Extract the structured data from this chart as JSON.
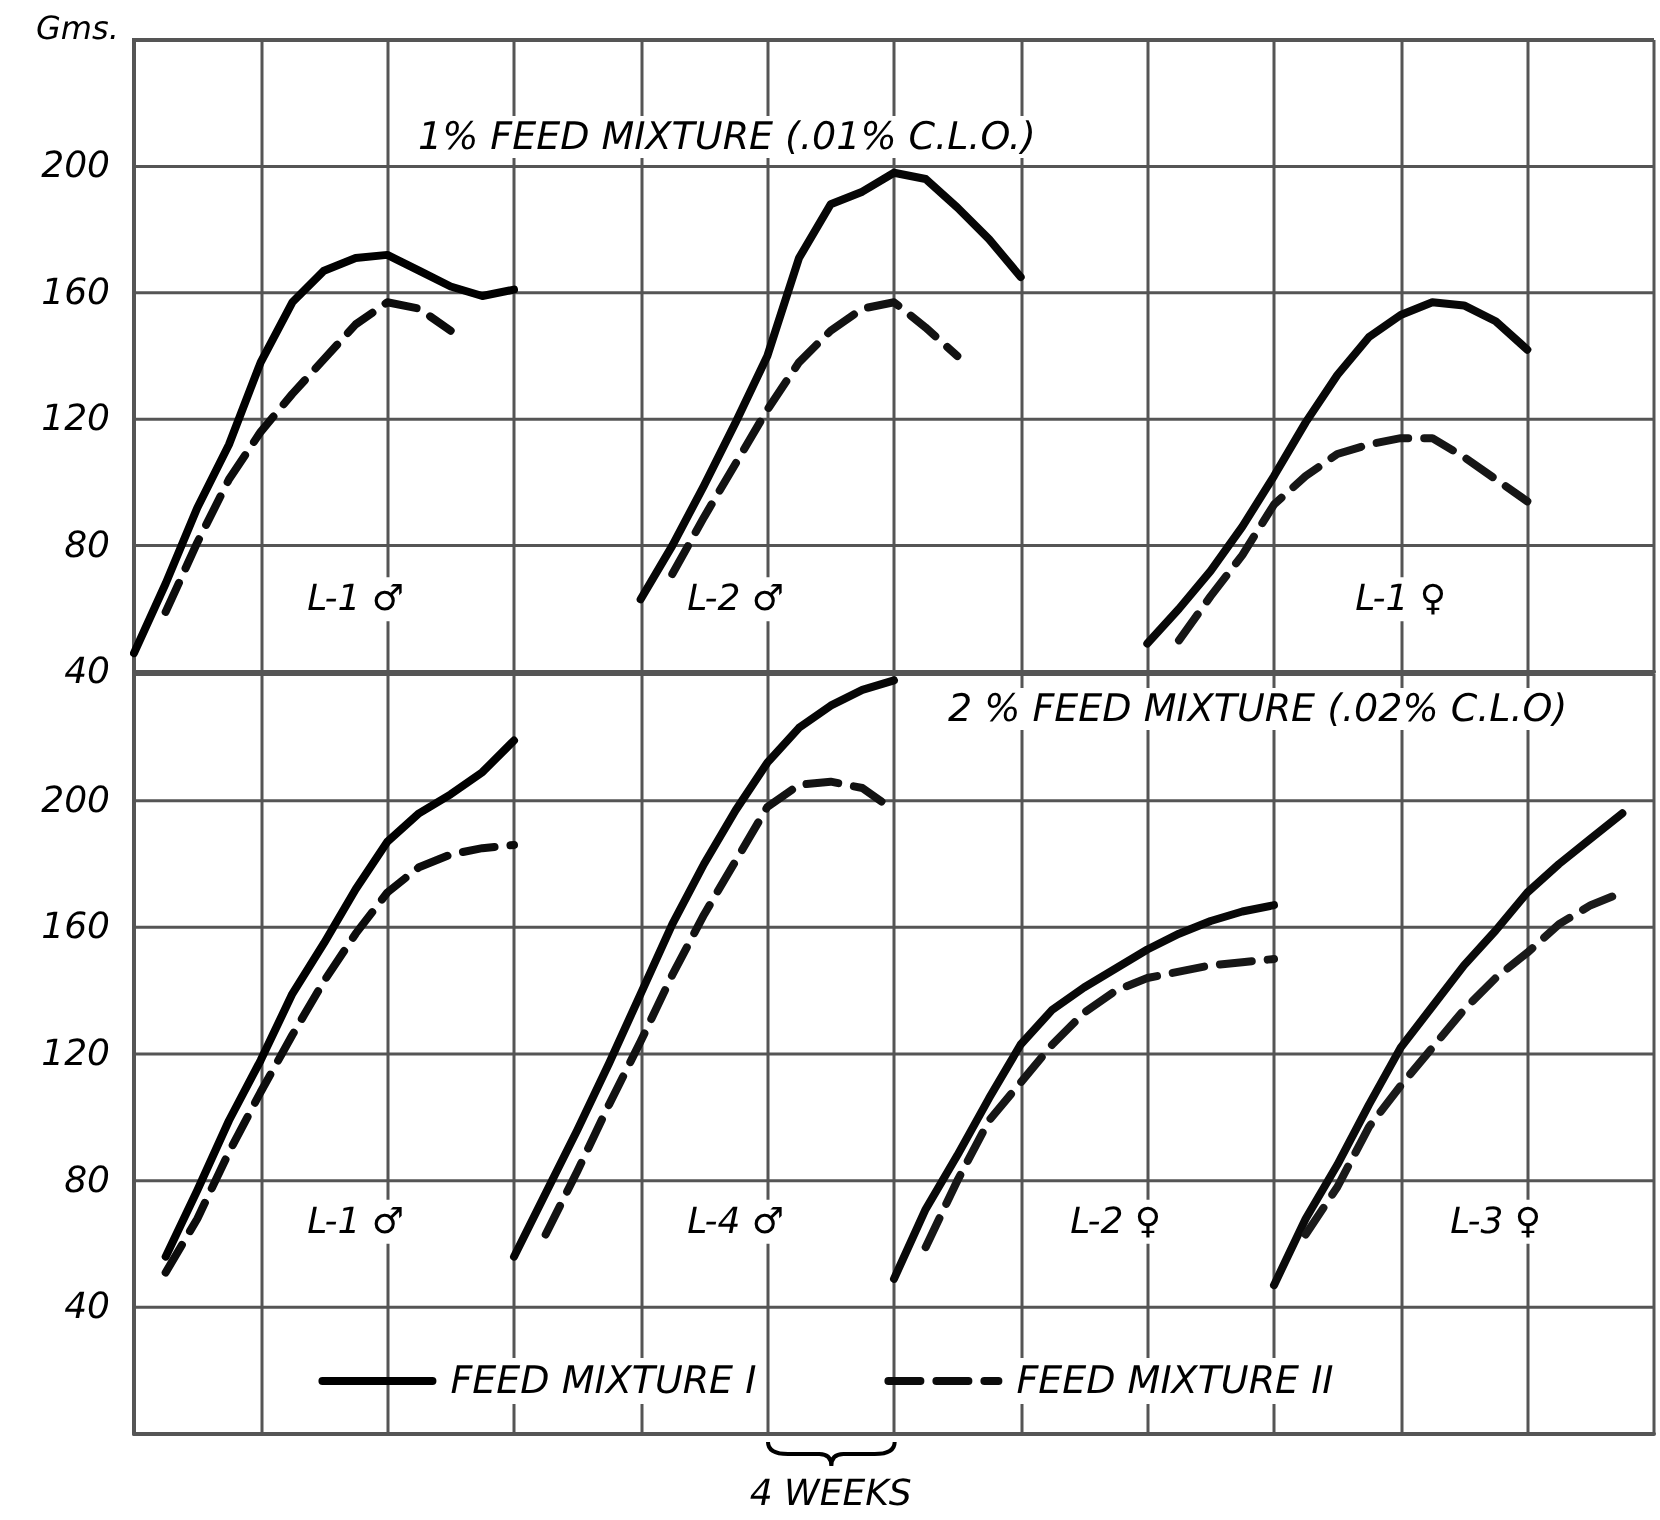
{
  "chart_data": [
    {
      "type": "line",
      "title": "1% FEED MIXTURE (.01% C.L.O.)",
      "ylabel": "Gms.",
      "categories": [
        null,
        null,
        null,
        null,
        null,
        null,
        null,
        null,
        null,
        null,
        null,
        null,
        null,
        null,
        null,
        null,
        null,
        null,
        null,
        null,
        null,
        null,
        null,
        null,
        null,
        null,
        null,
        null,
        null,
        null,
        null,
        null,
        null,
        null,
        null,
        null,
        null,
        null,
        null,
        null,
        null,
        null,
        null,
        null,
        null,
        null,
        null,
        null,
        null
      ],
      "series": [
        {
          "color": "#000000",
          "line_style": "solid",
          "values": [
            46,
            68,
            92,
            112,
            138,
            157,
            167,
            171,
            172,
            167,
            162,
            159,
            161,
            null,
            null,
            null,
            null,
            null,
            null,
            null,
            null,
            null,
            null,
            null,
            null,
            null,
            null,
            null,
            null,
            null,
            null,
            null,
            null,
            null,
            null,
            null,
            null,
            null,
            null,
            null,
            null,
            null,
            null,
            null,
            null,
            null,
            null,
            null,
            null
          ]
        },
        {
          "color": "#0c0c0c",
          "line_style": "dashed",
          "values": [
            null,
            59,
            81,
            101,
            116,
            128,
            139,
            150,
            157,
            155,
            148,
            null,
            null,
            null,
            null,
            null,
            null,
            null,
            null,
            null,
            null,
            null,
            null,
            null,
            null,
            null,
            null,
            null,
            null,
            null,
            null,
            null,
            null,
            null,
            null,
            null,
            null,
            null,
            null,
            null,
            null,
            null,
            null,
            null,
            null,
            null,
            null,
            null,
            null
          ]
        },
        {
          "color": "#060606",
          "line_style": "solid",
          "values": [
            null,
            null,
            null,
            null,
            null,
            null,
            null,
            null,
            null,
            null,
            null,
            null,
            null,
            null,
            null,
            null,
            63,
            80,
            99,
            119,
            140,
            171,
            188,
            192,
            198,
            196,
            187,
            177,
            165,
            null,
            null,
            null,
            null,
            null,
            null,
            null,
            null,
            null,
            null,
            null,
            null,
            null,
            null,
            null,
            null,
            null,
            null,
            null,
            null
          ]
        },
        {
          "color": "#121212",
          "line_style": "dashed",
          "values": [
            null,
            null,
            null,
            null,
            null,
            null,
            null,
            null,
            null,
            null,
            null,
            null,
            null,
            null,
            null,
            null,
            null,
            71,
            89,
            106,
            123,
            138,
            148,
            155,
            157,
            149,
            140,
            null,
            null,
            null,
            null,
            null,
            null,
            null,
            null,
            null,
            null,
            null,
            null,
            null,
            null,
            null,
            null,
            null,
            null,
            null,
            null,
            null,
            null
          ]
        },
        {
          "color": "#080808",
          "line_style": "solid",
          "values": [
            null,
            null,
            null,
            null,
            null,
            null,
            null,
            null,
            null,
            null,
            null,
            null,
            null,
            null,
            null,
            null,
            null,
            null,
            null,
            null,
            null,
            null,
            null,
            null,
            null,
            null,
            null,
            null,
            null,
            null,
            null,
            null,
            49,
            60,
            72,
            86,
            102,
            119,
            134,
            146,
            153,
            157,
            156,
            151,
            142,
            null,
            null,
            null,
            null
          ]
        },
        {
          "color": "#161616",
          "line_style": "dashed",
          "values": [
            null,
            null,
            null,
            null,
            null,
            null,
            null,
            null,
            null,
            null,
            null,
            null,
            null,
            null,
            null,
            null,
            null,
            null,
            null,
            null,
            null,
            null,
            null,
            null,
            null,
            null,
            null,
            null,
            null,
            null,
            null,
            null,
            null,
            50,
            64,
            77,
            93,
            102,
            109,
            112,
            114,
            114,
            108,
            101,
            94,
            null,
            null,
            null,
            null
          ]
        }
      ],
      "ylim": [
        40,
        240
      ],
      "yticks": [
        40,
        80,
        120,
        160,
        200
      ],
      "grid": true,
      "tick_labels": "y",
      "annotations": [
        "L-1 ♂",
        "L-2 ♂",
        "L-1 ♀"
      ]
    },
    {
      "type": "line",
      "title": "2 % FEED MIXTURE (.02% C.L.O)",
      "categories": [
        null,
        null,
        null,
        null,
        null,
        null,
        null,
        null,
        null,
        null,
        null,
        null,
        null,
        null,
        null,
        null,
        null,
        null,
        null,
        null,
        null,
        null,
        null,
        null,
        null,
        null,
        null,
        null,
        null,
        null,
        null,
        null,
        null,
        null,
        null,
        null,
        null,
        null,
        null,
        null,
        null,
        null,
        null,
        null,
        null,
        null,
        null,
        null,
        null
      ],
      "series": [
        {
          "name": "FEED MIXTURE I",
          "color": "#000000",
          "line_style": "solid",
          "values": [
            null,
            56,
            77,
            99,
            118,
            139,
            155,
            172,
            187,
            196,
            202,
            209,
            219,
            null,
            null,
            null,
            null,
            null,
            null,
            null,
            null,
            null,
            null,
            null,
            null,
            null,
            null,
            null,
            null,
            null,
            null,
            null,
            null,
            null,
            null,
            null,
            null,
            null,
            null,
            null,
            null,
            null,
            null,
            null,
            null,
            null,
            null,
            null,
            null
          ]
        },
        {
          "name": "FEED MIXTURE II",
          "color": "#0c0c0c",
          "line_style": "dashed",
          "values": [
            null,
            51,
            68,
            89,
            108,
            126,
            143,
            158,
            171,
            179,
            183,
            185,
            186,
            null,
            null,
            null,
            null,
            null,
            null,
            null,
            null,
            null,
            null,
            null,
            null,
            null,
            null,
            null,
            null,
            null,
            null,
            null,
            null,
            null,
            null,
            null,
            null,
            null,
            null,
            null,
            null,
            null,
            null,
            null,
            null,
            null,
            null,
            null,
            null
          ]
        },
        {
          "color": "#060606",
          "line_style": "solid",
          "values": [
            null,
            null,
            null,
            null,
            null,
            null,
            null,
            null,
            null,
            null,
            null,
            null,
            56,
            76,
            96,
            117,
            139,
            161,
            180,
            197,
            212,
            223,
            230,
            235,
            238,
            null,
            null,
            null,
            null,
            null,
            null,
            null,
            null,
            null,
            null,
            null,
            null,
            null,
            null,
            null,
            null,
            null,
            null,
            null,
            null,
            null,
            null,
            null,
            null
          ]
        },
        {
          "color": "#121212",
          "line_style": "dashed",
          "values": [
            null,
            null,
            null,
            null,
            null,
            null,
            null,
            null,
            null,
            null,
            null,
            null,
            null,
            63,
            83,
            104,
            124,
            145,
            164,
            181,
            198,
            205,
            206,
            204,
            197,
            null,
            null,
            null,
            null,
            null,
            null,
            null,
            null,
            null,
            null,
            null,
            null,
            null,
            null,
            null,
            null,
            null,
            null,
            null,
            null,
            null,
            null,
            null,
            null
          ]
        },
        {
          "color": "#080808",
          "line_style": "solid",
          "values": [
            null,
            null,
            null,
            null,
            null,
            null,
            null,
            null,
            null,
            null,
            null,
            null,
            null,
            null,
            null,
            null,
            null,
            null,
            null,
            null,
            null,
            null,
            null,
            null,
            49,
            71,
            88,
            106,
            123,
            134,
            141,
            147,
            153,
            158,
            162,
            165,
            167,
            null,
            null,
            null,
            null,
            null,
            null,
            null,
            null,
            null,
            null,
            null,
            null
          ]
        },
        {
          "color": "#161616",
          "line_style": "dashed",
          "values": [
            null,
            null,
            null,
            null,
            null,
            null,
            null,
            null,
            null,
            null,
            null,
            null,
            null,
            null,
            null,
            null,
            null,
            null,
            null,
            null,
            null,
            null,
            null,
            null,
            null,
            59,
            80,
            99,
            111,
            123,
            133,
            140,
            144,
            146,
            148,
            149,
            150,
            null,
            null,
            null,
            null,
            null,
            null,
            null,
            null,
            null,
            null,
            null,
            null
          ]
        },
        {
          "color": "#0a0a0a",
          "line_style": "solid",
          "values": [
            null,
            null,
            null,
            null,
            null,
            null,
            null,
            null,
            null,
            null,
            null,
            null,
            null,
            null,
            null,
            null,
            null,
            null,
            null,
            null,
            null,
            null,
            null,
            null,
            null,
            null,
            null,
            null,
            null,
            null,
            null,
            null,
            null,
            null,
            null,
            null,
            47,
            68,
            85,
            104,
            122,
            135,
            148,
            159,
            171,
            180,
            188,
            196,
            null
          ]
        },
        {
          "color": "#1a1a1a",
          "line_style": "dashed",
          "values": [
            null,
            null,
            null,
            null,
            null,
            null,
            null,
            null,
            null,
            null,
            null,
            null,
            null,
            null,
            null,
            null,
            null,
            null,
            null,
            null,
            null,
            null,
            null,
            null,
            null,
            null,
            null,
            null,
            null,
            null,
            null,
            null,
            null,
            null,
            null,
            null,
            null,
            63,
            78,
            97,
            110,
            122,
            134,
            144,
            152,
            161,
            167,
            171,
            null
          ]
        }
      ],
      "ylim": [
        0,
        240
      ],
      "yticks": [
        40,
        80,
        120,
        160,
        200
      ],
      "grid": true,
      "tick_labels": "y",
      "legend": "bottom",
      "annotations": [
        "L-1 ♂",
        "L-4 ♂",
        "L-2 ♀",
        "L-3 ♀",
        "4 WEEKS"
      ]
    }
  ]
}
